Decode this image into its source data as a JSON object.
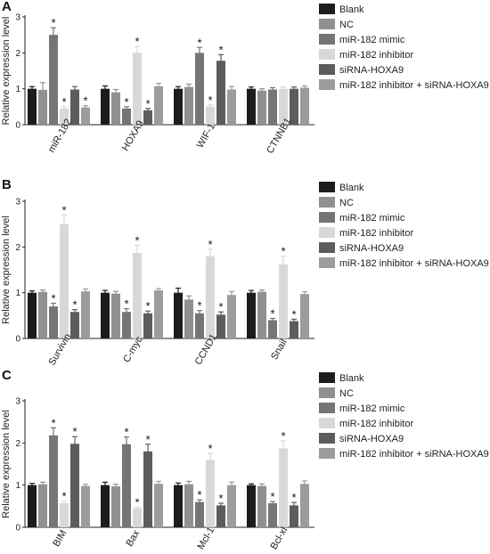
{
  "colors": {
    "series": [
      "#1c1c1c",
      "#909090",
      "#757575",
      "#d8d8d8",
      "#5c5c5c",
      "#9c9c9c"
    ]
  },
  "legend": [
    "Blank",
    "NC",
    "miR-182 mimic",
    "miR-182 inhibitor",
    "siRNA-HOXA9",
    "miR-182 inhibitor + siRNA-HOXA9"
  ],
  "chart_data": [
    {
      "panel": "A",
      "type": "bar",
      "ylabel": "Relative expression level",
      "ylim": [
        0,
        3
      ],
      "yticks": [
        "0",
        "1",
        "2",
        "3"
      ],
      "categories": [
        "miR-182",
        "HOXA9",
        "WIF-1",
        "CTNNB1"
      ],
      "legend_position": "right",
      "series": [
        {
          "name": "Blank",
          "values": [
            1.0,
            1.0,
            1.0,
            1.0
          ],
          "errors": [
            0.06,
            0.08,
            0.06,
            0.05
          ]
        },
        {
          "name": "NC",
          "values": [
            0.97,
            0.9,
            1.05,
            0.95
          ],
          "errors": [
            0.2,
            0.08,
            0.08,
            0.05
          ]
        },
        {
          "name": "miR-182 mimic",
          "values": [
            2.5,
            0.45,
            2.0,
            0.98
          ],
          "errors": [
            0.2,
            0.05,
            0.15,
            0.05
          ]
        },
        {
          "name": "miR-182 inhibitor",
          "values": [
            0.45,
            2.0,
            0.5,
            1.0
          ],
          "errors": [
            0.05,
            0.18,
            0.05,
            0.05
          ]
        },
        {
          "name": "siRNA-HOXA9",
          "values": [
            0.98,
            0.4,
            1.78,
            1.0
          ],
          "errors": [
            0.08,
            0.05,
            0.17,
            0.05
          ]
        },
        {
          "name": "miR-182 inhibitor + siRNA-HOXA9",
          "values": [
            0.48,
            1.07,
            0.98,
            1.03
          ],
          "errors": [
            0.05,
            0.08,
            0.08,
            0.05
          ]
        }
      ],
      "significance": [
        [
          false,
          false,
          false,
          false
        ],
        [
          false,
          false,
          false,
          false
        ],
        [
          true,
          true,
          true,
          false
        ],
        [
          true,
          true,
          true,
          false
        ],
        [
          false,
          true,
          true,
          false
        ],
        [
          true,
          false,
          false,
          false
        ]
      ]
    },
    {
      "panel": "B",
      "type": "bar",
      "ylabel": "Relative expression level",
      "ylim": [
        0,
        3
      ],
      "yticks": [
        "0",
        "1",
        "2",
        "3"
      ],
      "categories": [
        "Survivin",
        "C-myc",
        "CCND1",
        "Snail"
      ],
      "legend_position": "right",
      "series": [
        {
          "name": "Blank",
          "values": [
            1.0,
            1.0,
            1.0,
            1.0
          ],
          "errors": [
            0.04,
            0.05,
            0.1,
            0.05
          ]
        },
        {
          "name": "NC",
          "values": [
            1.02,
            0.98,
            0.85,
            1.02
          ],
          "errors": [
            0.04,
            0.05,
            0.08,
            0.04
          ]
        },
        {
          "name": "miR-182 mimic",
          "values": [
            0.7,
            0.58,
            0.55,
            0.4
          ],
          "errors": [
            0.07,
            0.07,
            0.06,
            0.04
          ]
        },
        {
          "name": "miR-182 inhibitor",
          "values": [
            2.5,
            1.87,
            1.8,
            1.62
          ],
          "errors": [
            0.2,
            0.17,
            0.15,
            0.18
          ]
        },
        {
          "name": "siRNA-HOXA9",
          "values": [
            0.58,
            0.55,
            0.52,
            0.38
          ],
          "errors": [
            0.05,
            0.05,
            0.06,
            0.04
          ]
        },
        {
          "name": "miR-182 inhibitor + siRNA-HOXA9",
          "values": [
            1.03,
            1.05,
            0.95,
            0.97
          ],
          "errors": [
            0.05,
            0.04,
            0.08,
            0.05
          ]
        }
      ],
      "significance": [
        [
          false,
          false,
          false,
          false
        ],
        [
          false,
          false,
          false,
          false
        ],
        [
          true,
          true,
          true,
          true
        ],
        [
          true,
          true,
          true,
          true
        ],
        [
          true,
          true,
          true,
          true
        ],
        [
          false,
          false,
          false,
          false
        ]
      ]
    },
    {
      "panel": "C",
      "type": "bar",
      "ylabel": "Relative expression level",
      "ylim": [
        0,
        3
      ],
      "yticks": [
        "0",
        "1",
        "2",
        "3"
      ],
      "categories": [
        "BIM",
        "Bax",
        "Mcl-1",
        "Bcl-xl"
      ],
      "legend_position": "right",
      "series": [
        {
          "name": "Blank",
          "values": [
            1.0,
            1.0,
            1.0,
            1.0
          ],
          "errors": [
            0.04,
            0.07,
            0.05,
            0.03
          ]
        },
        {
          "name": "NC",
          "values": [
            1.02,
            0.97,
            1.02,
            0.98
          ],
          "errors": [
            0.05,
            0.05,
            0.07,
            0.05
          ]
        },
        {
          "name": "miR-182 mimic",
          "values": [
            2.18,
            1.97,
            0.6,
            0.57
          ],
          "errors": [
            0.18,
            0.17,
            0.05,
            0.04
          ]
        },
        {
          "name": "miR-182 inhibitor",
          "values": [
            0.57,
            0.45,
            1.6,
            1.87
          ],
          "errors": [
            0.05,
            0.03,
            0.15,
            0.18
          ]
        },
        {
          "name": "siRNA-HOXA9",
          "values": [
            1.98,
            1.8,
            0.52,
            0.52
          ],
          "errors": [
            0.17,
            0.17,
            0.05,
            0.07
          ]
        },
        {
          "name": "miR-182 inhibitor + siRNA-HOXA9",
          "values": [
            0.98,
            1.03,
            1.0,
            1.03
          ],
          "errors": [
            0.04,
            0.06,
            0.07,
            0.07
          ]
        }
      ],
      "significance": [
        [
          false,
          false,
          false,
          false
        ],
        [
          false,
          false,
          false,
          false
        ],
        [
          true,
          true,
          true,
          true
        ],
        [
          true,
          true,
          true,
          true
        ],
        [
          true,
          true,
          true,
          true
        ],
        [
          false,
          false,
          false,
          false
        ]
      ]
    }
  ]
}
